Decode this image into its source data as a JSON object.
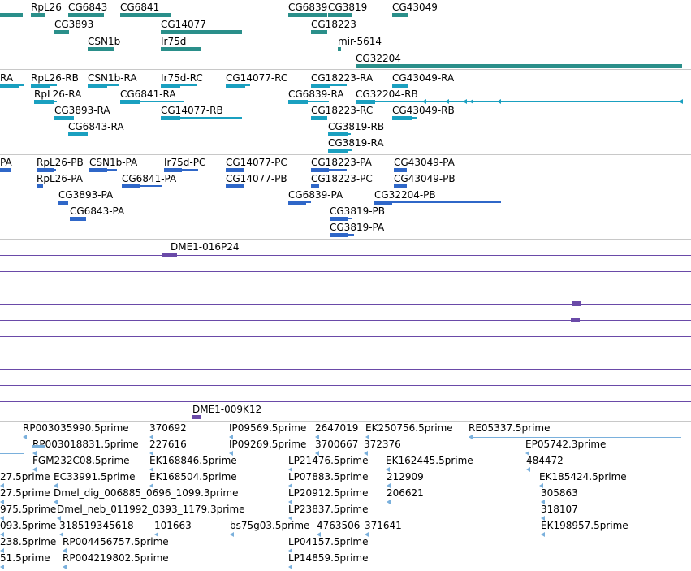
{
  "colors": {
    "gene": "#2a8f8a",
    "transcript": "#1aa0c0",
    "protein": "#2f67c8",
    "clone": "#6a4aa8",
    "est": "#7ab0dc",
    "separator": "#c8c8c8"
  },
  "tracks": {
    "genes": [
      {
        "label": "RpL26",
        "icon": "strand-arrow-icon"
      },
      {
        "label": "CG6843"
      },
      {
        "label": "CG6841"
      },
      {
        "label": "CG6839"
      },
      {
        "label": "CG3819"
      },
      {
        "label": "CG43049"
      },
      {
        "label": "CG3893"
      },
      {
        "label": "CG14077"
      },
      {
        "label": "CG18223"
      },
      {
        "label": "CSN1b"
      },
      {
        "label": "Ir75d"
      },
      {
        "label": "mir-5614"
      },
      {
        "label": "CG32204"
      }
    ],
    "transcripts": [
      {
        "label": "RA"
      },
      {
        "label": "RpL26-RB"
      },
      {
        "label": "CSN1b-RA"
      },
      {
        "label": "Ir75d-RC"
      },
      {
        "label": "CG14077-RC"
      },
      {
        "label": "CG18223-RA"
      },
      {
        "label": "CG43049-RA"
      },
      {
        "label": "RpL26-RA"
      },
      {
        "label": "CG6841-RA"
      },
      {
        "label": "CG6839-RA"
      },
      {
        "label": "CG32204-RB"
      },
      {
        "label": "CG3893-RA"
      },
      {
        "label": "CG14077-RB"
      },
      {
        "label": "CG18223-RC"
      },
      {
        "label": "CG43049-RB"
      },
      {
        "label": "CG6843-RA"
      },
      {
        "label": "CG3819-RB"
      },
      {
        "label": "CG3819-RA"
      }
    ],
    "proteins": [
      {
        "label": "PA"
      },
      {
        "label": "RpL26-PB"
      },
      {
        "label": "CSN1b-PA"
      },
      {
        "label": "Ir75d-PC"
      },
      {
        "label": "CG14077-PC"
      },
      {
        "label": "CG18223-PA"
      },
      {
        "label": "CG43049-PA"
      },
      {
        "label": "RpL26-PA"
      },
      {
        "label": "CG6841-PA"
      },
      {
        "label": "CG14077-PB"
      },
      {
        "label": "CG18223-PC"
      },
      {
        "label": "CG43049-PB"
      },
      {
        "label": "CG3893-PA"
      },
      {
        "label": "CG6839-PA"
      },
      {
        "label": "CG32204-PB"
      },
      {
        "label": "CG6843-PA"
      },
      {
        "label": "CG3819-PB"
      },
      {
        "label": "CG3819-PA"
      }
    ],
    "clones": [
      {
        "label": "DME1-016P24"
      },
      {
        "label": "DME1-009K12"
      }
    ],
    "ests": [
      {
        "label": "RP003035990.5prime"
      },
      {
        "label": "370692"
      },
      {
        "label": "IP09569.5prime"
      },
      {
        "label": "2647019"
      },
      {
        "label": "EK250756.5prime"
      },
      {
        "label": "RE05337.5prime"
      },
      {
        "label": "RP003018831.5prime"
      },
      {
        "label": "227616"
      },
      {
        "label": "IP09269.5prime"
      },
      {
        "label": "3700667"
      },
      {
        "label": "372376"
      },
      {
        "label": "EP05742.3prime"
      },
      {
        "label": "FGM232C08.5prime"
      },
      {
        "label": "EK168846.5prime"
      },
      {
        "label": "LP21476.5prime"
      },
      {
        "label": "EK162445.5prime"
      },
      {
        "label": "484472"
      },
      {
        "label": "27.5prime"
      },
      {
        "label": "EC33991.5prime"
      },
      {
        "label": "EK168504.5prime"
      },
      {
        "label": "LP07883.5prime"
      },
      {
        "label": "212909"
      },
      {
        "label": "EK185424.5prime"
      },
      {
        "label": "27.5prime"
      },
      {
        "label": "Dmel_dig_006885_0696_1099.3prime"
      },
      {
        "label": "LP20912.5prime"
      },
      {
        "label": "206621"
      },
      {
        "label": "305863"
      },
      {
        "label": "975.5prime"
      },
      {
        "label": "Dmel_neb_011992_0393_1179.3prime"
      },
      {
        "label": "LP23837.5prime"
      },
      {
        "label": "318107"
      },
      {
        "label": "093.5prime"
      },
      {
        "label": "318519345618"
      },
      {
        "label": "101663"
      },
      {
        "label": "bs75g03.5prime"
      },
      {
        "label": "4763506"
      },
      {
        "label": "371641"
      },
      {
        "label": "EK198957.5prime"
      },
      {
        "label": "238.5prime"
      },
      {
        "label": "RP004456757.5prime"
      },
      {
        "label": "LP04157.5prime"
      },
      {
        "label": "51.5prime"
      },
      {
        "label": "RP004219802.5prime"
      },
      {
        "label": "LP14859.5prime"
      }
    ]
  }
}
